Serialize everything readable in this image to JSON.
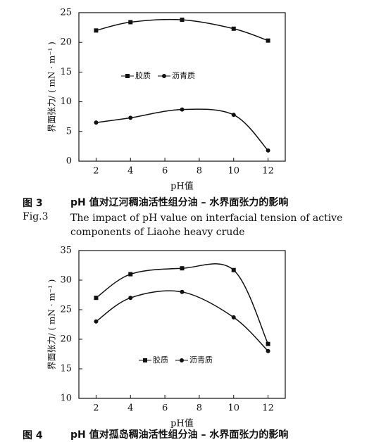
{
  "chart_data": [
    {
      "type": "line",
      "xlabel": "pH值",
      "ylabel": "界面张力/ ( mN · m⁻¹ )",
      "x": [
        2,
        4,
        7,
        10,
        12
      ],
      "series": [
        {
          "name": "胶质",
          "color": "#111111",
          "marker": "square",
          "values": [
            22,
            23.4,
            23.8,
            22.3,
            20.3
          ]
        },
        {
          "name": "沥青质",
          "color": "#111111",
          "marker": "circle",
          "values": [
            6.5,
            7.3,
            8.7,
            7.8,
            1.8
          ]
        }
      ],
      "xlim": [
        1,
        13
      ],
      "xticks": [
        2,
        4,
        6,
        8,
        10,
        12
      ],
      "ylim": [
        0,
        25
      ],
      "yticks": [
        0,
        5,
        10,
        15,
        20,
        25
      ],
      "legend": "center left",
      "caption_label": "图 3",
      "caption": "pH 值对辽河稠油活性组分油 – 水界面张力的影响",
      "caption_en_label": "Fig.3",
      "caption_en": "The impact of pH value on interfacial tension of active components of Liaohe heavy crude"
    },
    {
      "type": "line",
      "xlabel": "pH值",
      "ylabel": "界面张力/ ( mN · m⁻¹ )",
      "x": [
        2,
        4,
        7,
        10,
        12
      ],
      "series": [
        {
          "name": "胶质",
          "color": "#111111",
          "marker": "square",
          "values": [
            27,
            31,
            32,
            31.7,
            19.2
          ]
        },
        {
          "name": "沥青质",
          "color": "#111111",
          "marker": "circle",
          "values": [
            23,
            27,
            28,
            23.7,
            18
          ]
        }
      ],
      "xlim": [
        1,
        13
      ],
      "xticks": [
        2,
        4,
        6,
        8,
        10,
        12
      ],
      "ylim": [
        10,
        35
      ],
      "yticks": [
        10,
        15,
        20,
        25,
        30,
        35
      ],
      "legend": "lower center",
      "caption_label": "图 4",
      "caption": "pH 值对孤岛稠油活性组分油 – 水界面张力的影响"
    }
  ]
}
